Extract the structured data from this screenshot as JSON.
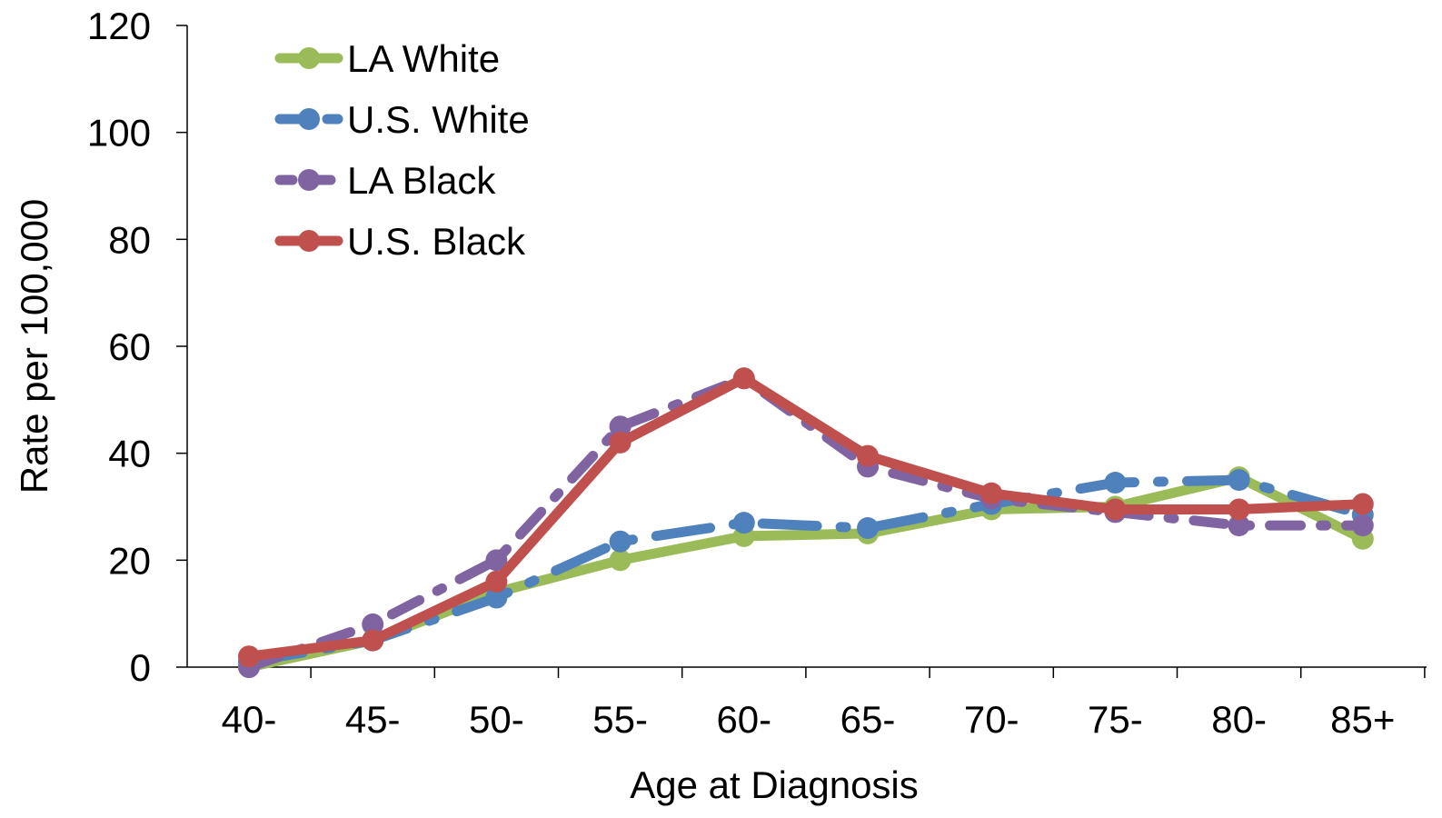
{
  "chart_data": {
    "type": "line",
    "title": "",
    "xlabel": "Age at Diagnosis",
    "ylabel": "Rate per 100,000",
    "categories": [
      "40-",
      "45-",
      "50-",
      "55-",
      "60-",
      "65-",
      "70-",
      "75-",
      "80-",
      "85+"
    ],
    "ylim": [
      0,
      120
    ],
    "yticks": [
      0,
      20,
      40,
      60,
      80,
      100,
      120
    ],
    "grid": false,
    "legend_position": "top-left",
    "series": [
      {
        "name": "LA White",
        "color": "#9BBB59",
        "dash": "solid",
        "values": [
          0,
          5,
          14,
          20,
          24.5,
          25,
          29.5,
          30,
          35.5,
          24
        ]
      },
      {
        "name": "U.S. White",
        "color": "#4F81BD",
        "dash": "long-dash-dot",
        "values": [
          1,
          5,
          13,
          23.5,
          27,
          26,
          30.5,
          34.5,
          35,
          28.5
        ]
      },
      {
        "name": "LA Black",
        "color": "#8064A2",
        "dash": "dash-dot",
        "values": [
          0,
          8,
          20,
          45,
          54,
          37.5,
          31.5,
          29,
          26.5,
          26.5
        ]
      },
      {
        "name": "U.S. Black",
        "color": "#C0504D",
        "dash": "solid",
        "values": [
          2,
          5,
          16,
          42,
          54,
          39.5,
          32.5,
          29.5,
          29.5,
          30.5
        ]
      }
    ]
  }
}
